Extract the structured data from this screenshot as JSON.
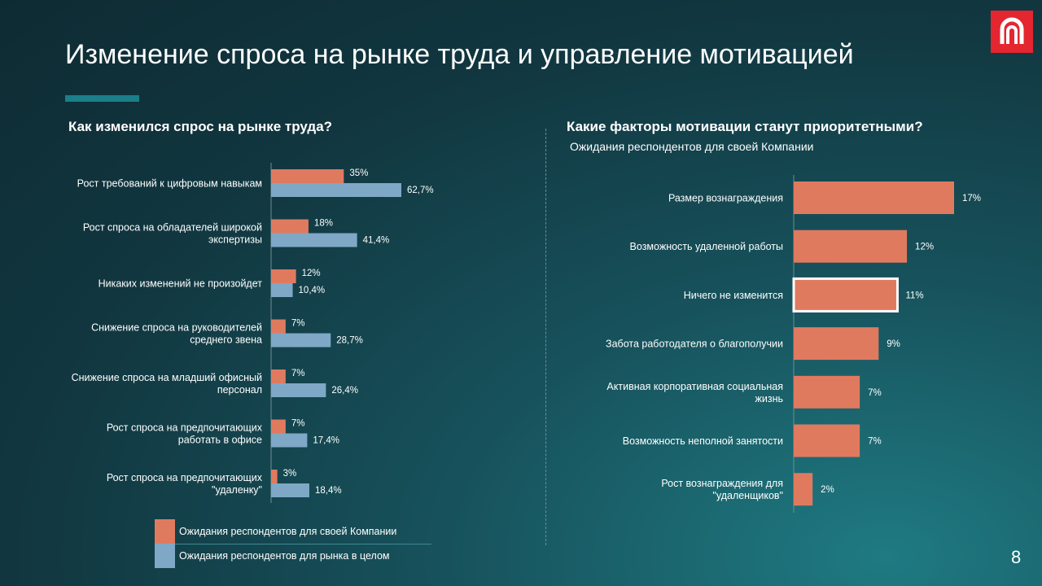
{
  "title": "Изменение спроса на рынке труда и управление мотивацией",
  "page_number": "8",
  "colors": {
    "company": "#e07a5f",
    "market": "#7fa8c6",
    "logo": "#e3262f"
  },
  "left_chart_title": "Как изменился спрос на рынке труда?",
  "right_chart_title": "Какие факторы мотивации станут приоритетными?",
  "right_chart_subtitle": "Ожидания респондентов для своей Компании",
  "legend": {
    "company": "Ожидания респондентов для своей Компании",
    "market": "Ожидания респондентов для рынка в целом"
  },
  "chart_data": [
    {
      "type": "bar",
      "orientation": "horizontal",
      "title": "Как изменился спрос на рынке труда?",
      "categories": [
        [
          "Рост требований к цифровым навыкам"
        ],
        [
          "Рост спроса на обладателей широкой",
          "экспертизы"
        ],
        [
          "Никаких изменений не произойдет"
        ],
        [
          "Снижение спроса на руководителей",
          "среднего звена"
        ],
        [
          "Снижение  спроса на младший офисный",
          "персонал"
        ],
        [
          "Рост спроса на предпочитающих",
          "работать в офисе"
        ],
        [
          "Рост спроса на предпочитающих",
          "\"удаленку\""
        ]
      ],
      "series": [
        {
          "name": "Ожидания респондентов для своей Компании",
          "values": [
            35,
            18,
            12,
            7,
            7,
            7,
            3
          ],
          "labels": [
            "35%",
            "18%",
            "12%",
            "7%",
            "7%",
            "7%",
            "3%"
          ]
        },
        {
          "name": "Ожидания респондентов для рынка в целом",
          "values": [
            62.7,
            41.4,
            10.4,
            28.7,
            26.4,
            17.4,
            18.4
          ],
          "labels": [
            "62,7%",
            "41,4%",
            "10,4%",
            "28,7%",
            "26,4%",
            "17,4%",
            "18,4%"
          ]
        }
      ],
      "xlim": [
        0,
        100
      ]
    },
    {
      "type": "bar",
      "orientation": "horizontal",
      "title": "Какие факторы мотивации станут приоритетными?",
      "subtitle": "Ожидания респондентов для своей Компании",
      "categories": [
        [
          "Размер вознаграждения"
        ],
        [
          "Возможность удаленной работы"
        ],
        [
          "Ничего не изменится"
        ],
        [
          "Забота работодателя о благополучии"
        ],
        [
          "Активная корпоративная социальная",
          "жизнь"
        ],
        [
          "Возможность неполной занятости"
        ],
        [
          "Рост вознаграждения для",
          "\"удаленщиков\""
        ]
      ],
      "values": [
        17,
        12,
        11,
        9,
        7,
        7,
        2
      ],
      "labels": [
        "17%",
        "12%",
        "11%",
        "9%",
        "7%",
        "7%",
        "2%"
      ],
      "highlighted": "Ничего не изменится",
      "xlim": [
        0,
        17
      ]
    }
  ]
}
